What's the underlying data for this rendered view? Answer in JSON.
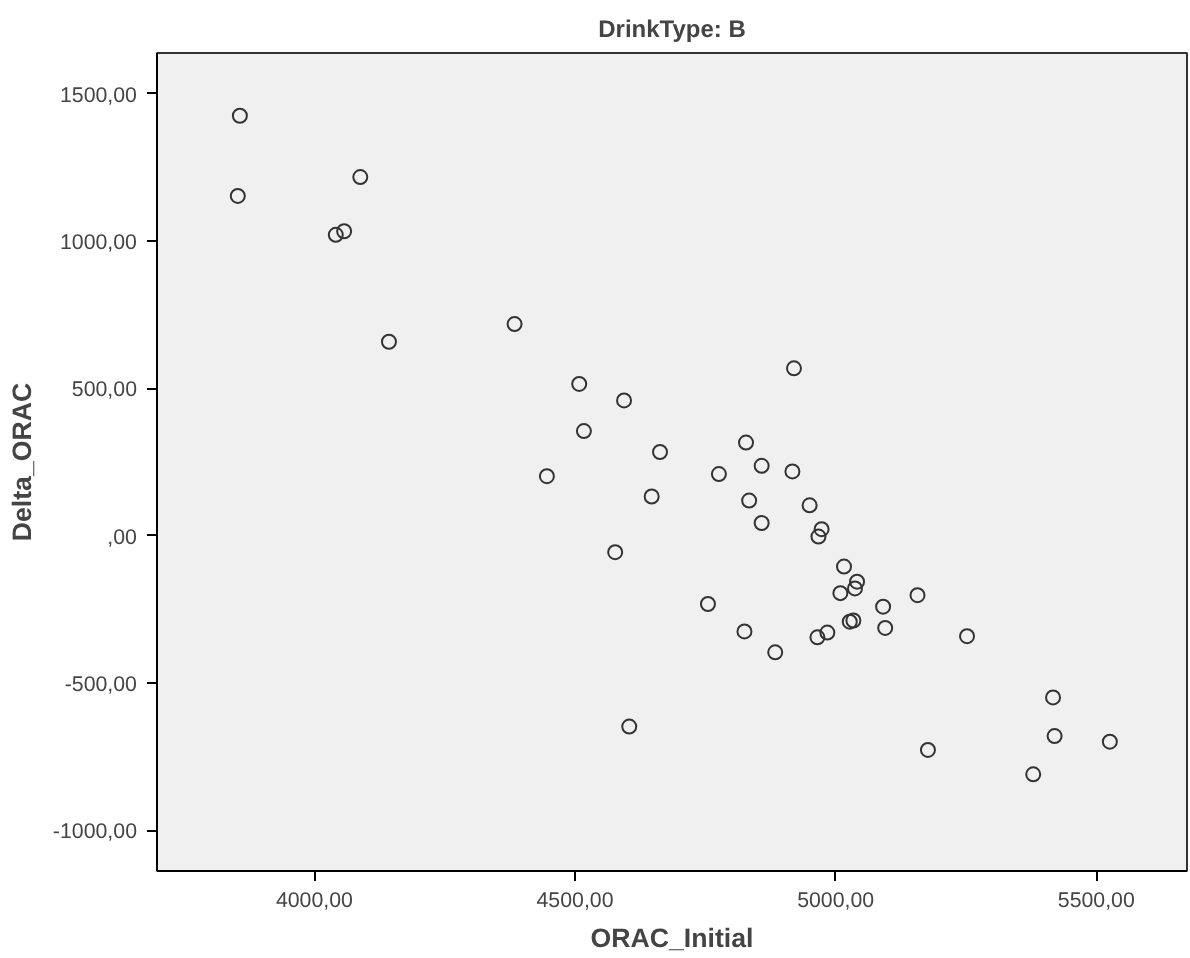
{
  "chart_data": {
    "type": "scatter",
    "title": "DrinkType: B",
    "xlabel": "ORAC_Initial",
    "ylabel": "Delta_ORAC",
    "x": [
      3857,
      3853,
      4088,
      4041,
      4057,
      4143,
      4384,
      4446,
      4508,
      4517,
      4920,
      4594,
      4663,
      4647,
      4577,
      4828,
      4858,
      4776,
      4917,
      4834,
      4950,
      4858,
      4973,
      4967,
      5016,
      5041,
      5037,
      5009,
      5157,
      5091,
      4755,
      4825,
      4884,
      4965,
      4984,
      5027,
      5034,
      5095,
      5252,
      5417,
      5420,
      5526,
      5379,
      5177,
      4604
    ],
    "values": [
      1425,
      1153,
      1217,
      1021,
      1033,
      658,
      718,
      202,
      515,
      355,
      568,
      459,
      284,
      133,
      -56,
      316,
      237,
      209,
      218,
      119,
      103,
      43,
      22,
      -3,
      -105,
      -156,
      -179,
      -195,
      -202,
      -241,
      -232,
      -325,
      -396,
      -345,
      -329,
      -292,
      -288,
      -313,
      -341,
      -549,
      -680,
      -699,
      -810,
      -727,
      -648
    ],
    "color": "#333333",
    "marker": "circle",
    "grid": false,
    "xlim": [
      3698,
      5674
    ],
    "ylim": [
      -1138,
      1638
    ],
    "xticks": [
      {
        "value": 4000,
        "label": "4000,00"
      },
      {
        "value": 4500,
        "label": "4500,00"
      },
      {
        "value": 5000,
        "label": "5000,00"
      },
      {
        "value": 5500,
        "label": "5500,00"
      }
    ],
    "yticks": [
      {
        "value": -1000,
        "label": "-1000,00"
      },
      {
        "value": -500,
        "label": "-500,00"
      },
      {
        "value": 0,
        "label": ",00"
      },
      {
        "value": 500,
        "label": "500,00"
      },
      {
        "value": 1000,
        "label": "1000,00"
      },
      {
        "value": 1500,
        "label": "1500,00"
      }
    ]
  }
}
